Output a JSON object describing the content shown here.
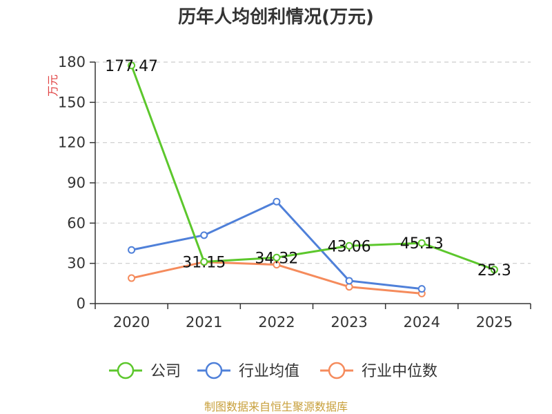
{
  "chart_data": {
    "type": "line",
    "title": "历年人均创利情况(万元)",
    "ylabel": "万元",
    "xlabel": "",
    "categories": [
      "2020",
      "2021",
      "2022",
      "2023",
      "2024",
      "2025"
    ],
    "yticks": [
      0,
      30,
      60,
      90,
      120,
      150,
      180
    ],
    "ylim": [
      0,
      180
    ],
    "grid": true,
    "legend_position": "bottom",
    "series": [
      {
        "name": "公司",
        "color": "#5cc72c",
        "values": [
          177.47,
          31.15,
          34.32,
          43.06,
          45.13,
          25.3
        ],
        "labels": [
          "177.47",
          "31.15",
          "34.32",
          "43.06",
          "45.13",
          "25.3"
        ]
      },
      {
        "name": "行业均值",
        "color": "#4f80d9",
        "values": [
          40,
          51,
          76,
          17,
          11,
          null
        ]
      },
      {
        "name": "行业中位数",
        "color": "#f58b5c",
        "values": [
          19,
          31,
          29,
          12.5,
          7.5,
          null
        ]
      }
    ],
    "source": "制图数据来自恒生聚源数据库",
    "source_color": "#c8a03c",
    "ylabel_color": "#e04040"
  }
}
